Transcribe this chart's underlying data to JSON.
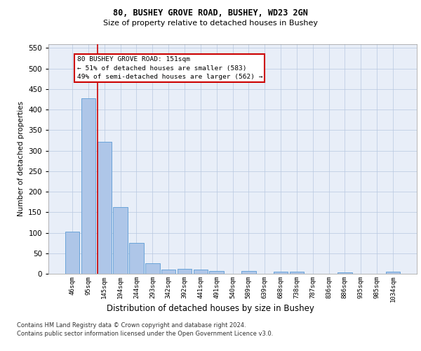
{
  "title1": "80, BUSHEY GROVE ROAD, BUSHEY, WD23 2GN",
  "title2": "Size of property relative to detached houses in Bushey",
  "xlabel": "Distribution of detached houses by size in Bushey",
  "ylabel": "Number of detached properties",
  "categories": [
    "46sqm",
    "95sqm",
    "145sqm",
    "194sqm",
    "244sqm",
    "293sqm",
    "342sqm",
    "392sqm",
    "441sqm",
    "491sqm",
    "540sqm",
    "589sqm",
    "639sqm",
    "688sqm",
    "738sqm",
    "787sqm",
    "836sqm",
    "886sqm",
    "935sqm",
    "985sqm",
    "1034sqm"
  ],
  "values": [
    103,
    427,
    321,
    163,
    75,
    26,
    11,
    12,
    11,
    7,
    0,
    6,
    0,
    5,
    5,
    0,
    0,
    3,
    0,
    0,
    5
  ],
  "bar_color": "#aec6e8",
  "bar_edge_color": "#5b9bd5",
  "vline_x": 2,
  "vline_color": "#cc0000",
  "annotation_text": "80 BUSHEY GROVE ROAD: 151sqm\n← 51% of detached houses are smaller (583)\n49% of semi-detached houses are larger (562) →",
  "annotation_box_color": "#ffffff",
  "annotation_box_edge": "#cc0000",
  "ylim": [
    0,
    560
  ],
  "yticks": [
    0,
    50,
    100,
    150,
    200,
    250,
    300,
    350,
    400,
    450,
    500,
    550
  ],
  "footer1": "Contains HM Land Registry data © Crown copyright and database right 2024.",
  "footer2": "Contains public sector information licensed under the Open Government Licence v3.0.",
  "plot_bg_color": "#e8eef8"
}
